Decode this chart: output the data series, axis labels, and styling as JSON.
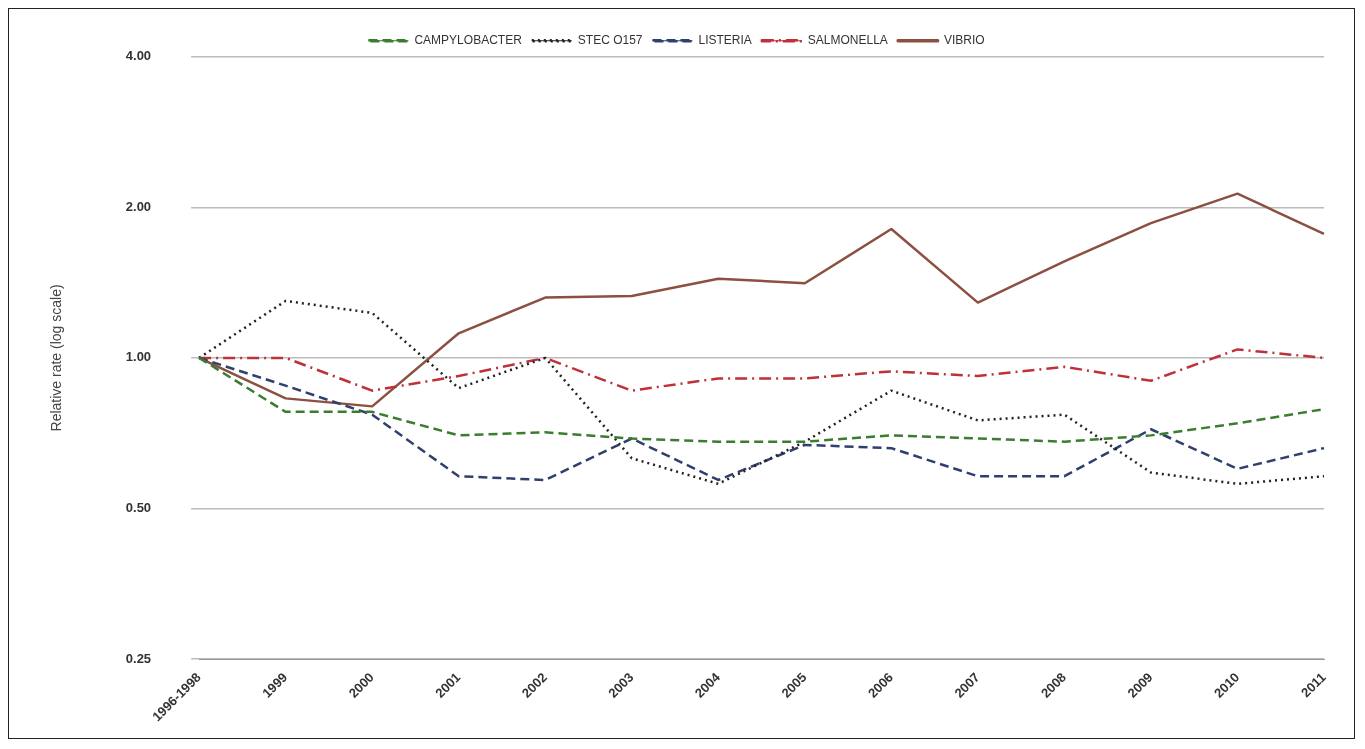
{
  "chart_data": {
    "type": "line",
    "ylabel": "Relative rate (log scale)",
    "categories": [
      "1996-1998",
      "1999",
      "2000",
      "2001",
      "2002",
      "2003",
      "2004",
      "2005",
      "2006",
      "2007",
      "2008",
      "2009",
      "2010",
      "2011"
    ],
    "series": [
      {
        "name": "CAMPYLOBACTER",
        "color": "#3a7d2e",
        "line_style": "dashed",
        "values": [
          1.0,
          0.78,
          0.78,
          0.7,
          0.71,
          0.69,
          0.68,
          0.68,
          0.7,
          0.69,
          0.68,
          0.7,
          0.74,
          0.79
        ]
      },
      {
        "name": "STEC O157",
        "color": "#222222",
        "line_style": "dotted",
        "values": [
          1.0,
          1.3,
          1.23,
          0.87,
          1.0,
          0.63,
          0.56,
          0.68,
          0.86,
          0.75,
          0.77,
          0.59,
          0.56,
          0.58
        ]
      },
      {
        "name": "LISTERIA",
        "color": "#2f3f6e",
        "line_style": "dashed",
        "values": [
          1.0,
          0.88,
          0.77,
          0.58,
          0.57,
          0.69,
          0.57,
          0.67,
          0.66,
          0.58,
          0.58,
          0.72,
          0.6,
          0.66
        ]
      },
      {
        "name": "SALMONELLA",
        "color": "#c0303a",
        "line_style": "dashdot",
        "values": [
          1.0,
          1.0,
          0.86,
          0.92,
          1.0,
          0.86,
          0.91,
          0.91,
          0.94,
          0.92,
          0.96,
          0.9,
          1.04,
          1.0
        ]
      },
      {
        "name": "VIBRIO",
        "color": "#8b5040",
        "line_style": "solid",
        "values": [
          1.0,
          0.83,
          0.8,
          1.12,
          1.32,
          1.33,
          1.44,
          1.41,
          1.81,
          1.29,
          1.56,
          1.86,
          2.13,
          1.77
        ]
      }
    ],
    "log": "y",
    "ylim": [
      0.25,
      4
    ],
    "yticks": [
      {
        "value": 0.25,
        "label": "0.25"
      },
      {
        "value": 0.5,
        "label": "0.50"
      },
      {
        "value": 1,
        "label": "1.00"
      },
      {
        "value": 2,
        "label": "2.00"
      },
      {
        "value": 4,
        "label": "4.00"
      }
    ],
    "grid": "y",
    "legend": "top",
    "marker": "none"
  }
}
